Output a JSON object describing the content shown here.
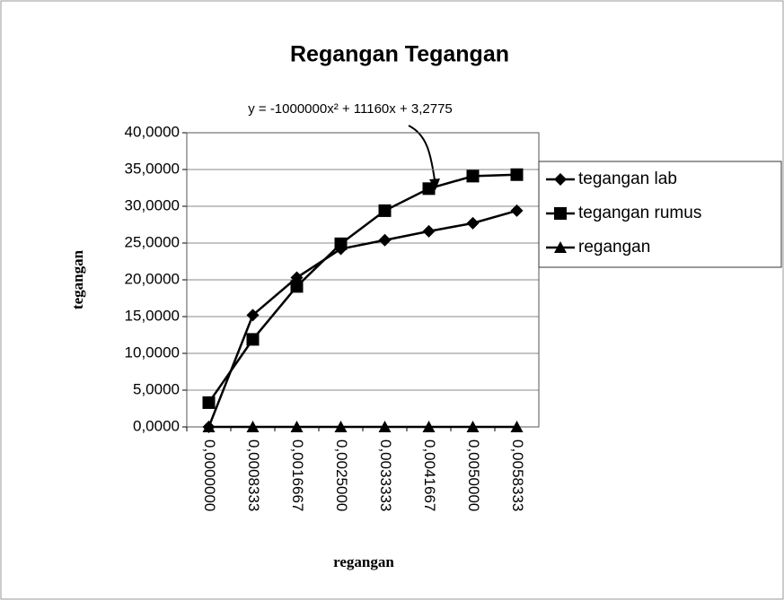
{
  "chart_data": {
    "type": "line",
    "title": "Regangan Tegangan",
    "annotation": "y = -1000000x² + 11160x + 3,2775",
    "x_label": "regangan",
    "y_label": "tegangan",
    "categories": [
      "0,0000000",
      "0,0008333",
      "0,0016667",
      "0,0025000",
      "0,0033333",
      "0,0041667",
      "0,0050000",
      "0,0058333"
    ],
    "series": [
      {
        "name": "tegangan lab",
        "color": "#000000",
        "marker": "diamond",
        "values": [
          0,
          15.2,
          20.3,
          24.2,
          25.4,
          26.6,
          27.7,
          29.4
        ]
      },
      {
        "name": "tegangan rumus",
        "color": "#000000",
        "marker": "square",
        "values": [
          3.3,
          11.9,
          19.1,
          24.9,
          29.4,
          32.4,
          34.1,
          34.3
        ]
      },
      {
        "name": "regangan",
        "color": "#000000",
        "marker": "triangle",
        "values": [
          0,
          0,
          0,
          0,
          0,
          0,
          0,
          0
        ]
      }
    ],
    "ylim": [
      0,
      40
    ],
    "yticks": [
      {
        "value": 0,
        "label": "0,0000"
      },
      {
        "value": 5,
        "label": "5,0000"
      },
      {
        "value": 10,
        "label": "10,0000"
      },
      {
        "value": 15,
        "label": "15,0000"
      },
      {
        "value": 20,
        "label": "20,0000"
      },
      {
        "value": 25,
        "label": "25,0000"
      },
      {
        "value": 30,
        "label": "30,0000"
      },
      {
        "value": 35,
        "label": "35,0000"
      },
      {
        "value": 40,
        "label": "40,0000"
      }
    ],
    "grid": true,
    "legend": "right"
  }
}
